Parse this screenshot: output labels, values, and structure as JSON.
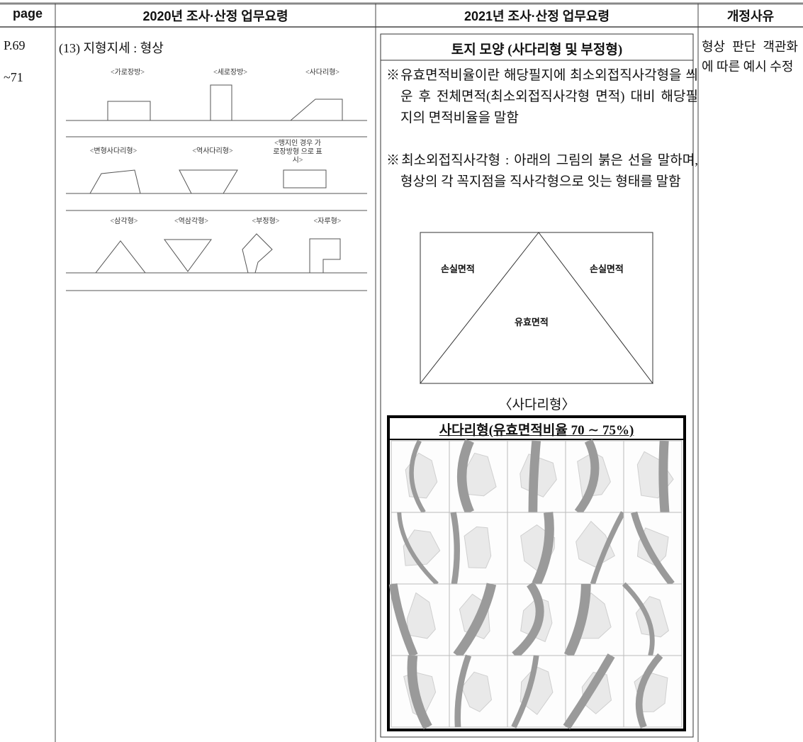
{
  "header": {
    "page": "page",
    "col_2020": "2020년 조사·산정 업무요령",
    "col_2021": "2021년 조사·산정 업무요령",
    "reason": "개정사유"
  },
  "page_ref": [
    "P.69",
    "~71"
  ],
  "col_2020": {
    "heading": "(13) 지형지세 : 형상",
    "shape_labels": [
      "<가로장방>",
      "<세로장방>",
      "<사다리형>",
      "<변형사다리형>",
      "<역사다리형>",
      "<맹지인 경우 가로장방형 으로 표시>",
      "<삼각형>",
      "<역삼각형>",
      "<부정형>",
      "<자루형>"
    ]
  },
  "col_2021": {
    "title": "토지 모양 (사다리형 및 부정형)",
    "notes": [
      "※유효면적비율이란 해당필지에 최소외접직사각형을 씌운 후 전체면적(최소외접직사각형 면적) 대비 해당필지의 면적비율을 말함",
      "※최소외접직사각형 : 아래의 그림의 붉은 선을 말하며, 형상의 각 꼭지점을 직사각형으로 잇는 형태를 말함"
    ],
    "diagram": {
      "labels": [
        "손실면적",
        "손실면적",
        "유효면적"
      ],
      "caption": "〈사다리형〉"
    },
    "photo_title": "사다리형(유효면적비율 70 ∼ 75%)"
  },
  "reason": "형상 판단 객관화에 따른 예시 수정"
}
